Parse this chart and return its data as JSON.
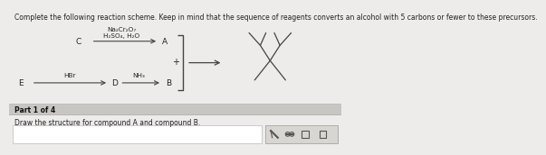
{
  "title_text": "Complete the following reaction scheme. Keep in mind that the sequence of reagents converts an alcohol with 5 carbons or fewer to these precursors.",
  "title_fontsize": 5.5,
  "bg_color": "#edecea",
  "bottom_bar_color": "#c8c6c2",
  "bottom_text1": "Part 1 of 4",
  "bottom_text2": "Draw the structure for compound A and compound B.",
  "reagent1_line1": "Na₂Cr₂O₇",
  "reagent1_line2": "H₂SO₄, H₂O",
  "reagent2": "NH₃",
  "reagent3": "HBr",
  "label_C": "C",
  "label_A": "A",
  "label_D": "D",
  "label_B": "B",
  "label_E": "E",
  "text_color": "#222222",
  "arrow_color": "#444444",
  "bracket_color": "#444444",
  "molecule_color": "#444444",
  "icon_box_color": "#d8d6d2",
  "icon_box_border": "#999999",
  "plus_sign": "+"
}
